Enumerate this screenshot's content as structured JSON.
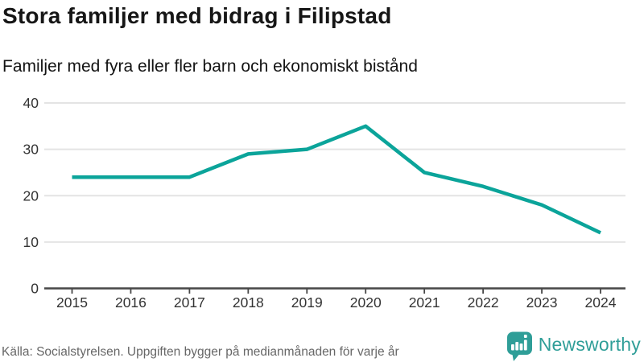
{
  "header": {
    "title": "Stora familjer med bidrag i Filipstad",
    "subtitle": "Familjer med fyra eller fler barn och ekonomiskt bistånd"
  },
  "chart_data": {
    "type": "line",
    "title": "Stora familjer med bidrag i Filipstad",
    "subtitle": "Familjer med fyra eller fler barn och ekonomiskt bistånd",
    "x": [
      "2015",
      "2016",
      "2017",
      "2018",
      "2019",
      "2020",
      "2021",
      "2022",
      "2023",
      "2024"
    ],
    "values": [
      24,
      24,
      24,
      29,
      30,
      35,
      25,
      22,
      18,
      12
    ],
    "xlabel": "",
    "ylabel": "",
    "ylim": [
      0,
      40
    ],
    "yticks": [
      0,
      10,
      20,
      30,
      40
    ],
    "grid": true,
    "legend": "none",
    "line_color": "#0ba49a",
    "grid_color": "#e4e4e4",
    "axis_color": "#474747",
    "tick_label_color": "#333333"
  },
  "footer": {
    "source": "Källa: Socialstyrelsen. Uppgiften bygger på medianmånaden för varje år",
    "brand": "Newsworthy",
    "brand_color": "#2f9e98"
  }
}
